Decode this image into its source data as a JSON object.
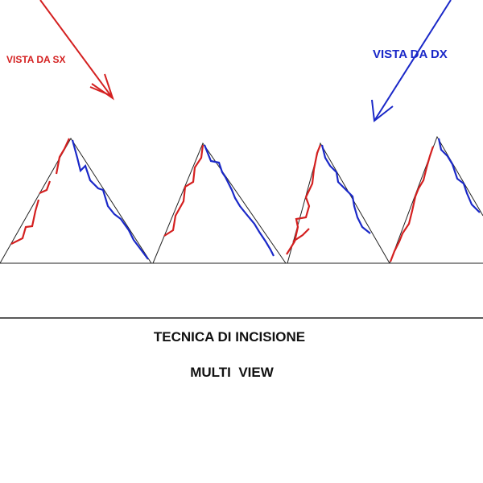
{
  "labels": {
    "left_view": "VISTA DA SX",
    "right_view": "VISTA DA DX"
  },
  "caption": {
    "title": "TECNICA DI INCISIONE",
    "subtitle": "MULTI  VIEW"
  }
}
